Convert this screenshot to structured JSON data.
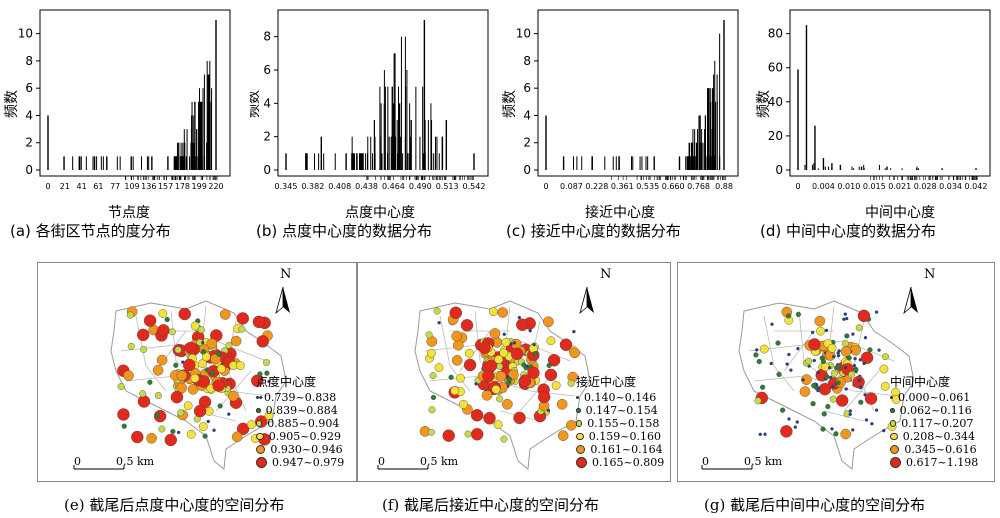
{
  "chart_data": [
    {
      "type": "bar",
      "panel": "a",
      "caption": "(a) 各街区节点的度分布",
      "xlabel": "节点度",
      "ylabel": "频数",
      "xticks": [
        "0",
        "21",
        "41",
        "61",
        "77",
        "109",
        "136",
        "157",
        "178",
        "199",
        "220"
      ],
      "yticks": [
        0,
        2,
        4,
        6,
        8,
        10
      ],
      "ylim": [
        0,
        11
      ],
      "x": [
        0,
        21,
        41,
        61,
        77,
        109,
        136,
        157,
        178,
        199,
        220
      ],
      "values": [
        4,
        1,
        1,
        1,
        1,
        1,
        1,
        1,
        1,
        2,
        11
      ]
    },
    {
      "type": "bar",
      "panel": "b",
      "caption": "(b) 点度中心度的数据分布",
      "xlabel": "点度中心度",
      "ylabel": "频数",
      "xticks": [
        "0.345",
        "0.382",
        "0.408",
        "0.438",
        "0.464",
        "0.490",
        "0.513",
        "0.542"
      ],
      "yticks": [
        0,
        2,
        4,
        6,
        8
      ],
      "ylim": [
        0,
        9
      ],
      "x": [
        0.345,
        0.382,
        0.408,
        0.438,
        0.464,
        0.49,
        0.513,
        0.542
      ],
      "values": [
        1,
        2,
        1,
        2,
        4,
        9,
        3,
        1
      ]
    },
    {
      "type": "bar",
      "panel": "c",
      "caption": "(c) 接近中心度的数据分布",
      "xlabel": "接近中心度",
      "ylabel": "频数",
      "xticks": [
        "0",
        "0.087",
        "0.228",
        "0.361",
        "0.535",
        "0.660",
        "0.768",
        "0.88"
      ],
      "yticks": [
        0,
        2,
        4,
        6,
        8,
        10
      ],
      "ylim": [
        0,
        11
      ],
      "x": [
        0,
        0.087,
        0.228,
        0.361,
        0.535,
        0.66,
        0.768,
        0.88
      ],
      "values": [
        4,
        1,
        1,
        1,
        1,
        1,
        2,
        11
      ]
    },
    {
      "type": "bar",
      "panel": "d",
      "caption": "(d) 中间中心度的数据分布",
      "xlabel": "中间中心度",
      "ylabel": "频数",
      "xticks": [
        "0",
        "0.004",
        "0.010",
        "0.015",
        "0.021",
        "0.028",
        "0.034",
        "0.042"
      ],
      "yticks": [
        0,
        20,
        40,
        60,
        80
      ],
      "ylim": [
        0,
        88
      ],
      "x": [
        0,
        0.002,
        0.004,
        0.006,
        0.008,
        0.01,
        0.015,
        0.021,
        0.028,
        0.034,
        0.042
      ],
      "values": [
        59,
        85,
        26,
        7,
        4,
        3,
        2,
        2,
        1,
        1,
        1
      ]
    }
  ],
  "maps": [
    {
      "caption": "(e) 截尾后点度中心度的空间分布",
      "legend_title": "点度中心度",
      "legend": [
        {
          "label": "0.739~0.838",
          "color": "#1f3f99"
        },
        {
          "label": "0.839~0.884",
          "color": "#2e7d32"
        },
        {
          "label": "0.885~0.904",
          "color": "#c6d94a"
        },
        {
          "label": "0.905~0.929",
          "color": "#f2e23a"
        },
        {
          "label": "0.930~0.946",
          "color": "#f0961f"
        },
        {
          "label": "0.947~0.979",
          "color": "#e02a1d"
        }
      ],
      "north": "N",
      "scale_zero": "0",
      "scale_label": "0.5 km"
    },
    {
      "caption": "(f) 截尾后接近中心度的空间分布",
      "legend_title": "接近中心度",
      "legend": [
        {
          "label": "0.140~0.146",
          "color": "#1f3f99"
        },
        {
          "label": "0.147~0.154",
          "color": "#2e7d32"
        },
        {
          "label": "0.155~0.158",
          "color": "#c6d94a"
        },
        {
          "label": "0.159~0.160",
          "color": "#f2e23a"
        },
        {
          "label": "0.161~0.164",
          "color": "#f0961f"
        },
        {
          "label": "0.165~0.809",
          "color": "#e02a1d"
        }
      ],
      "north": "N",
      "scale_zero": "0",
      "scale_label": "0.5 km"
    },
    {
      "caption": "(g) 截尾后中间中心度的空间分布",
      "legend_title": "中间中心度",
      "legend": [
        {
          "label": "0.000~0.061",
          "color": "#1f3f99"
        },
        {
          "label": "0.062~0.116",
          "color": "#2e7d32"
        },
        {
          "label": "0.117~0.207",
          "color": "#c6d94a"
        },
        {
          "label": "0.208~0.344",
          "color": "#f2e23a"
        },
        {
          "label": "0.345~0.616",
          "color": "#f0961f"
        },
        {
          "label": "0.617~1.198",
          "color": "#e02a1d"
        }
      ],
      "north": "N",
      "scale_zero": "0",
      "scale_label": "0.5 km"
    }
  ]
}
